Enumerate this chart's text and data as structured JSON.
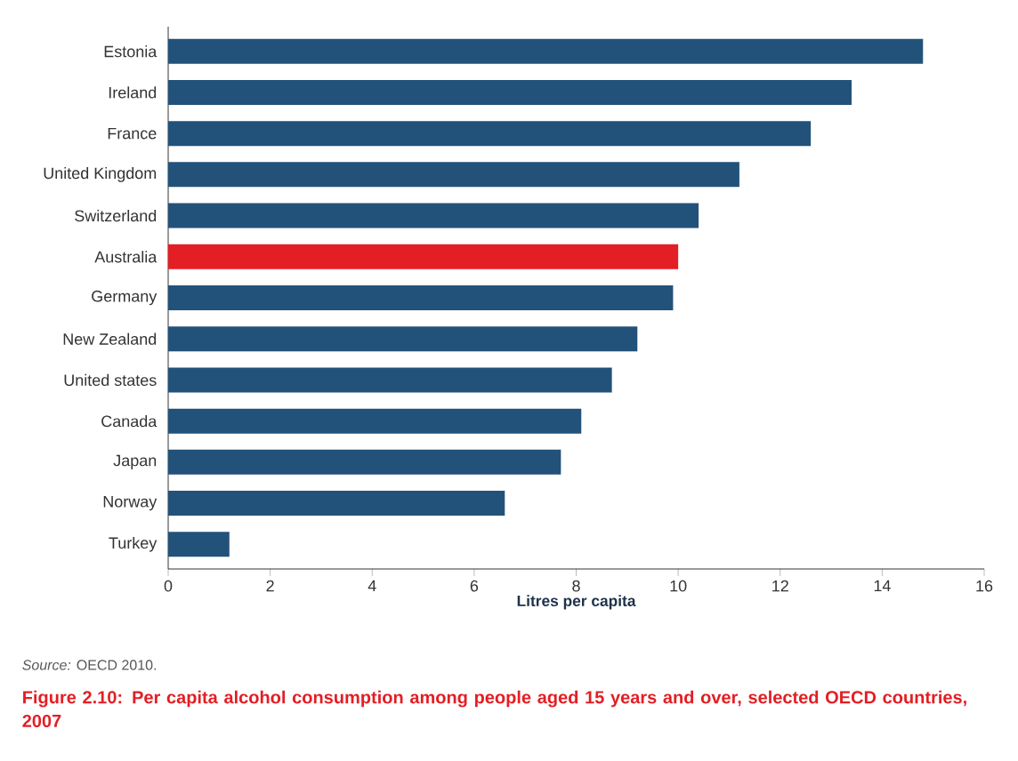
{
  "chart_data": {
    "type": "bar",
    "orientation": "horizontal",
    "title": "Figure 2.10: Per capita alcohol consumption among people aged 15 years and over, selected OECD countries, 2007",
    "xlabel": "Litres per capita",
    "categories": [
      "Estonia",
      "Ireland",
      "France",
      "United Kingdom",
      "Switzerland",
      "Australia",
      "Germany",
      "New Zealand",
      "United states",
      "Canada",
      "Japan",
      "Norway",
      "Turkey"
    ],
    "values": [
      14.8,
      13.4,
      12.6,
      11.2,
      10.4,
      10.0,
      9.9,
      9.2,
      8.7,
      8.1,
      7.7,
      6.6,
      1.2
    ],
    "colors": [
      "#22527a",
      "#22527a",
      "#22527a",
      "#22527a",
      "#22527a",
      "#e31e24",
      "#22527a",
      "#22527a",
      "#22527a",
      "#22527a",
      "#22527a",
      "#22527a",
      "#22527a"
    ],
    "xlim": [
      0,
      16
    ],
    "xticks": [
      0,
      2,
      4,
      6,
      8,
      10,
      12,
      14,
      16
    ],
    "annotations": [
      "*Source:* OECD 2010."
    ]
  }
}
